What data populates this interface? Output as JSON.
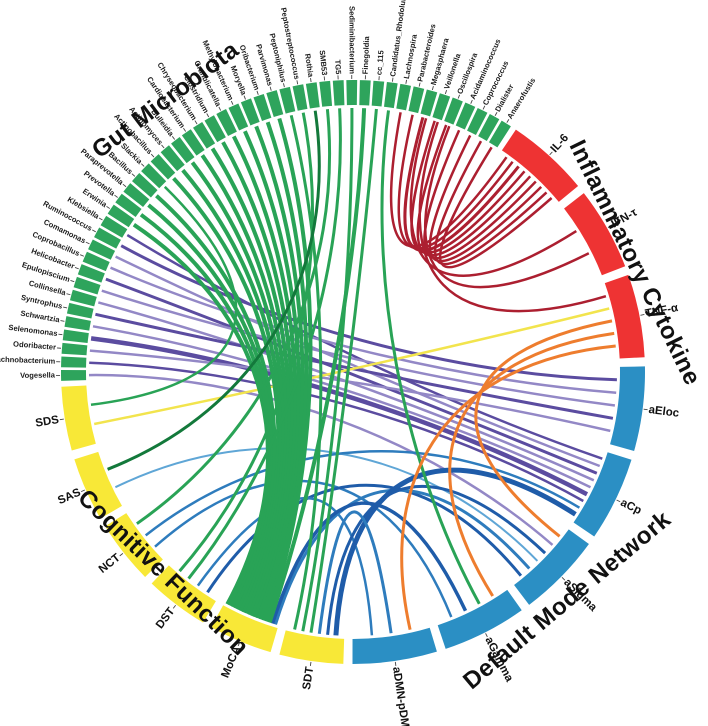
{
  "figure": {
    "background": "#ffffff"
  },
  "chart_data": {
    "type": "chord",
    "grid": false,
    "legend_position": "none",
    "categories": [
      {
        "id": "gut",
        "label": "Gut Microbiota",
        "color": "#2EA45C",
        "nodes": [
          "Vogesella",
          "Lachnobacterium",
          "Odoribacter",
          "Selenomonas",
          "Schwartzia",
          "Syntrophus",
          "Collinsella",
          "Epulopiscium",
          "Helicobacter",
          "Coprobacillus",
          "Comamonas",
          "Ruminococcus",
          "Klebsiella",
          "Erwinia",
          "Prevotella",
          "Paraprevotella",
          "Bacillus",
          "Slackia",
          "Actinobacillus",
          "Actinomyces",
          "Bulleidia",
          "Cardiobacterium",
          "Chryseobacterium",
          "Clostridium",
          "Granulicatella",
          "Methylobacterium",
          "Moryella",
          "Oribacterium",
          "Parvimonas",
          "Peptoniphilus",
          "Peptostreptococcus",
          "Rothia",
          "SMB53",
          "TG5",
          "Sediminibacterium",
          "Finegoldia",
          "cc_115",
          "Candidatus_Rhodoluna",
          "Lachnospira",
          "Parabacteroides",
          "Megasphaera",
          "Veillonella",
          "Oscillospira",
          "Acidaminococcus",
          "Coprococcus",
          "Dialister",
          "Anaerofustis"
        ]
      },
      {
        "id": "cytokine",
        "label": "Inflammatory Cytokine",
        "color": "#EE3333",
        "nodes": [
          "IL-6",
          "IFN-τ",
          "TNF-α"
        ]
      },
      {
        "id": "dmn",
        "label": "Default Mode Network",
        "color": "#2B8FC4",
        "nodes": [
          "aEloc",
          "aCp",
          "aSigma",
          "aGamma",
          "aDMN-pDMN"
        ]
      },
      {
        "id": "cognitive",
        "label": "Cognitive Function",
        "color": "#F8E837",
        "nodes": [
          "SDS",
          "SAS",
          "NCT",
          "DST",
          "MoCA",
          "SDT"
        ]
      }
    ],
    "links": [
      {
        "s": "Lachnospira",
        "t": "IL-6",
        "c": "#AC1F30",
        "w": 2.5
      },
      {
        "s": "Parabacteroides",
        "t": "IL-6",
        "c": "#AC1F30",
        "w": 2.5
      },
      {
        "s": "Megasphaera",
        "t": "IL-6",
        "c": "#AC1F30",
        "w": 3
      },
      {
        "s": "Veillonella",
        "t": "IL-6",
        "c": "#AC1F30",
        "w": 2.5
      },
      {
        "s": "Oscillospira",
        "t": "IL-6",
        "c": "#AC1F30",
        "w": 2.5
      },
      {
        "s": "Acidaminococcus",
        "t": "IL-6",
        "c": "#AC1F30",
        "w": 2.5
      },
      {
        "s": "Coprococcus",
        "t": "IL-6",
        "c": "#AC1F30",
        "w": 2.5
      },
      {
        "s": "Dialister",
        "t": "IL-6",
        "c": "#AC1F30",
        "w": 2.5
      },
      {
        "s": "Anaerofustis",
        "t": "IL-6",
        "c": "#AC1F30",
        "w": 2.5
      },
      {
        "s": "Megasphaera",
        "t": "IFN-τ",
        "c": "#AC1F30",
        "w": 2.5
      },
      {
        "s": "Oscillospira",
        "t": "IFN-τ",
        "c": "#AC1F30",
        "w": 2.5
      },
      {
        "s": "Veillonella",
        "t": "TNF-α",
        "c": "#AC1F30",
        "w": 2.5
      },
      {
        "s": "Klebsiella",
        "t": "aCp",
        "c": "#5B4CA0",
        "w": 2.5
      },
      {
        "s": "Ruminococcus",
        "t": "aEloc",
        "c": "#5B4CA0",
        "w": 3
      },
      {
        "s": "Comamonas",
        "t": "aCp",
        "c": "#9388C6",
        "w": 2.5
      },
      {
        "s": "Coprobacillus",
        "t": "aEloc",
        "c": "#9388C6",
        "w": 2.5
      },
      {
        "s": "Helicobacter",
        "t": "aCp",
        "c": "#5B4CA0",
        "w": 3
      },
      {
        "s": "Epulopiscium",
        "t": "aEloc",
        "c": "#9388C6",
        "w": 2.5
      },
      {
        "s": "Collinsella",
        "t": "aCp",
        "c": "#9388C6",
        "w": 2.5
      },
      {
        "s": "Syntrophus",
        "t": "aEloc",
        "c": "#5B4CA0",
        "w": 3
      },
      {
        "s": "Schwartzia",
        "t": "aCp",
        "c": "#9388C6",
        "w": 2.5
      },
      {
        "s": "Selenomonas",
        "t": "aCp",
        "c": "#5B4CA0",
        "w": 4.5
      },
      {
        "s": "Odoribacter",
        "t": "aEloc",
        "c": "#9388C6",
        "w": 2.5
      },
      {
        "s": "Lachnobacterium",
        "t": "aCp",
        "c": "#5B4CA0",
        "w": 2.5
      },
      {
        "s": "Vogesella",
        "t": "aSigma",
        "c": "#9388C6",
        "w": 2.5
      },
      {
        "s": "SAS",
        "t": "aSigma",
        "c": "#5FA6D6",
        "w": 2
      },
      {
        "s": "NCT",
        "t": "aCp",
        "c": "#2E7CBD",
        "w": 2.5
      },
      {
        "s": "NCT",
        "t": "aGamma",
        "c": "#2E7CBD",
        "w": 2.5
      },
      {
        "s": "DST",
        "t": "aSigma",
        "c": "#1F5CA9",
        "w": 3
      },
      {
        "s": "DST",
        "t": "aDMN-pDMN",
        "c": "#2E7CBD",
        "w": 2.5
      },
      {
        "s": "MoCA",
        "t": "aSigma",
        "c": "#2E7CBD",
        "w": 3
      },
      {
        "s": "MoCA",
        "t": "aGamma",
        "c": "#1F5CA9",
        "w": 3.5
      },
      {
        "s": "SDT",
        "t": "aCp",
        "c": "#1F5CA9",
        "w": 5
      },
      {
        "s": "SDT",
        "t": "aSigma",
        "c": "#1F5CA9",
        "w": 3
      },
      {
        "s": "SDT",
        "t": "aDMN-pDMN",
        "c": "#2E7CBD",
        "w": 3
      },
      {
        "s": "SDS",
        "t": "TNF-α",
        "c": "#F2E44D",
        "w": 2.5
      },
      {
        "s": "Erwinia",
        "t": "MoCA",
        "c": "#29A356",
        "w": 4
      },
      {
        "s": "Prevotella",
        "t": "MoCA",
        "c": "#29A356",
        "w": 4
      },
      {
        "s": "Paraprevotella",
        "t": "MoCA",
        "c": "#29A356",
        "w": 4
      },
      {
        "s": "Bacillus",
        "t": "MoCA",
        "c": "#29A356",
        "w": 4
      },
      {
        "s": "Slackia",
        "t": "SDS",
        "c": "#29A356",
        "w": 2.5
      },
      {
        "s": "Actinobacillus",
        "t": "MoCA",
        "c": "#29A356",
        "w": 4
      },
      {
        "s": "Actinomyces",
        "t": "MoCA",
        "c": "#29A356",
        "w": 4
      },
      {
        "s": "Bulleidia",
        "t": "MoCA",
        "c": "#29A356",
        "w": 4
      },
      {
        "s": "Cardiobacterium",
        "t": "MoCA",
        "c": "#29A356",
        "w": 4
      },
      {
        "s": "Chryseobacterium",
        "t": "MoCA",
        "c": "#29A356",
        "w": 4
      },
      {
        "s": "Clostridium",
        "t": "MoCA",
        "c": "#29A356",
        "w": 4
      },
      {
        "s": "Granulicatella",
        "t": "MoCA",
        "c": "#29A356",
        "w": 4
      },
      {
        "s": "Methylobacterium",
        "t": "MoCA",
        "c": "#29A356",
        "w": 4
      },
      {
        "s": "Moryella",
        "t": "MoCA",
        "c": "#29A356",
        "w": 4
      },
      {
        "s": "Oribacterium",
        "t": "MoCA",
        "c": "#29A356",
        "w": 4
      },
      {
        "s": "Parvimonas",
        "t": "MoCA",
        "c": "#29A356",
        "w": 4
      },
      {
        "s": "Peptoniphilus",
        "t": "SDT",
        "c": "#29A356",
        "w": 3
      },
      {
        "s": "Peptostreptococcus",
        "t": "DST",
        "c": "#29A356",
        "w": 3
      },
      {
        "s": "Rothia",
        "t": "SAS",
        "c": "#13793B",
        "w": 3
      },
      {
        "s": "SMB53",
        "t": "NCT",
        "c": "#29A356",
        "w": 3
      },
      {
        "s": "TG5",
        "t": "DST",
        "c": "#29A356",
        "w": 3
      },
      {
        "s": "Sediminibacterium",
        "t": "SDT",
        "c": "#29A356",
        "w": 3
      },
      {
        "s": "Finegoldia",
        "t": "MoCA",
        "c": "#29A356",
        "w": 4
      },
      {
        "s": "cc_115",
        "t": "SDT",
        "c": "#29A356",
        "w": 3
      },
      {
        "s": "Candidatus_Rhodoluna",
        "t": "aGamma",
        "c": "#29A356",
        "w": 3
      },
      {
        "s": "TNF-α",
        "t": "aSigma",
        "c": "#EE7D2E",
        "w": 3
      },
      {
        "s": "TNF-α",
        "t": "aGamma",
        "c": "#EE7D2E",
        "w": 3
      },
      {
        "s": "TNF-α",
        "t": "aDMN-pDMN",
        "c": "#EE7D2E",
        "w": 3
      }
    ]
  }
}
